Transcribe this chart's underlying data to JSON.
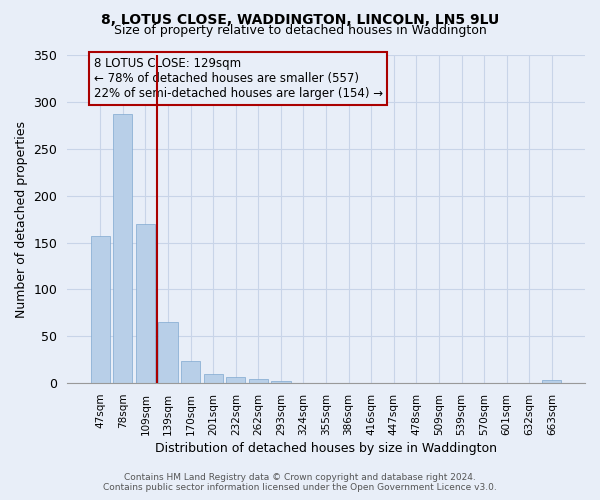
{
  "title": "8, LOTUS CLOSE, WADDINGTON, LINCOLN, LN5 9LU",
  "subtitle": "Size of property relative to detached houses in Waddington",
  "xlabel": "Distribution of detached houses by size in Waddington",
  "ylabel": "Number of detached properties",
  "bar_labels": [
    "47sqm",
    "78sqm",
    "109sqm",
    "139sqm",
    "170sqm",
    "201sqm",
    "232sqm",
    "262sqm",
    "293sqm",
    "324sqm",
    "355sqm",
    "386sqm",
    "416sqm",
    "447sqm",
    "478sqm",
    "509sqm",
    "539sqm",
    "570sqm",
    "601sqm",
    "632sqm",
    "663sqm"
  ],
  "bar_values": [
    157,
    287,
    170,
    65,
    24,
    10,
    7,
    4,
    2,
    0,
    0,
    0,
    0,
    0,
    0,
    0,
    0,
    0,
    0,
    0,
    3
  ],
  "bar_color": "#b8cfe8",
  "bar_edge_color": "#7fa8d0",
  "vline_x_index": 3,
  "vline_color": "#aa0000",
  "annotation_lines": [
    "8 LOTUS CLOSE: 129sqm",
    "← 78% of detached houses are smaller (557)",
    "22% of semi-detached houses are larger (154) →"
  ],
  "annotation_box_color": "#aa0000",
  "annotation_bg": "#e8eef8",
  "ylim": [
    0,
    350
  ],
  "yticks": [
    0,
    50,
    100,
    150,
    200,
    250,
    300,
    350
  ],
  "footer_line1": "Contains HM Land Registry data © Crown copyright and database right 2024.",
  "footer_line2": "Contains public sector information licensed under the Open Government Licence v3.0.",
  "bg_color": "#e8eef8",
  "grid_color": "#c8d4e8"
}
